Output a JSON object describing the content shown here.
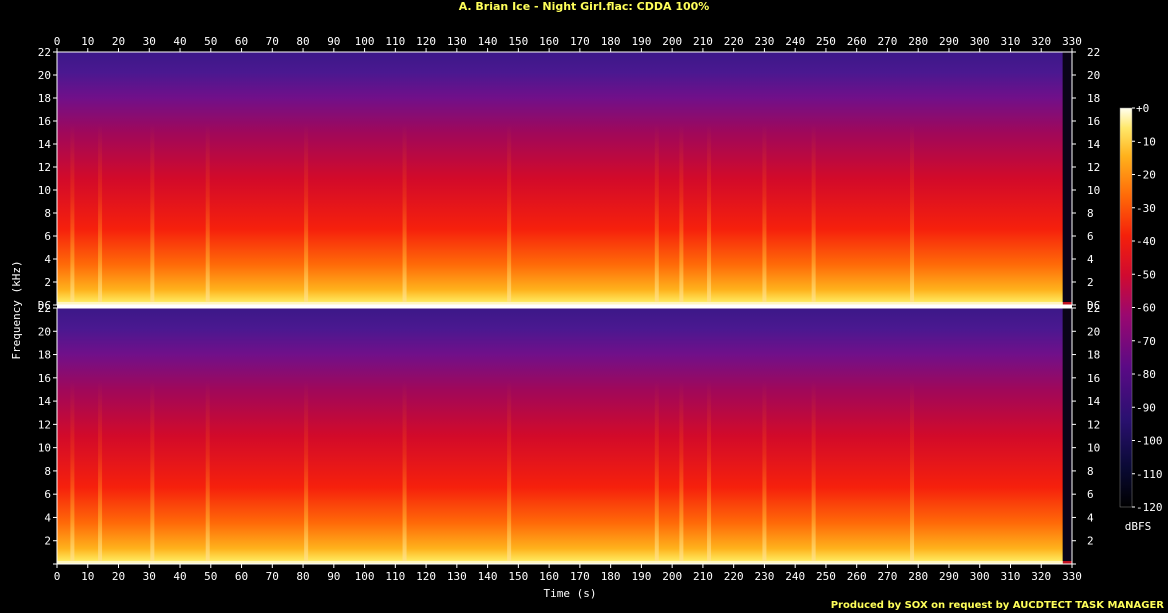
{
  "title": "A. Brian Ice - Night Girl.flac: CDDA 100%",
  "footer": "Produced by SOX on request by AUCDTECT TASK MANAGER",
  "colors": {
    "background": "#000000",
    "title": "#ffff5a",
    "axis": "#ffffff"
  },
  "chart_data": {
    "type": "heatmap",
    "xlabel": "Time (s)",
    "ylabel": "Frequency (kHz)",
    "colorbar_label": "dBFS",
    "x_ticks": [
      0,
      10,
      20,
      30,
      40,
      50,
      60,
      70,
      80,
      90,
      100,
      110,
      120,
      130,
      140,
      150,
      160,
      170,
      180,
      190,
      200,
      210,
      220,
      230,
      240,
      250,
      260,
      270,
      280,
      290,
      300,
      310,
      320,
      330
    ],
    "xlim": [
      0,
      330
    ],
    "channels": [
      {
        "y_ticks": [
          "DC",
          "2",
          "4",
          "6",
          "8",
          "10",
          "12",
          "14",
          "16",
          "18",
          "20",
          "22"
        ],
        "ylim": [
          0,
          22
        ]
      },
      {
        "y_ticks": [
          "",
          "2",
          "4",
          "6",
          "8",
          "10",
          "12",
          "14",
          "16",
          "18",
          "20",
          "22"
        ],
        "ylim": [
          0,
          22
        ]
      }
    ],
    "colorbar_ticks": [
      "+0",
      "-10",
      "-20",
      "-30",
      "-40",
      "-50",
      "-60",
      "-70",
      "-80",
      "-90",
      "-100",
      "-110",
      "-120"
    ],
    "colorbar_range": [
      -120,
      0
    ],
    "audio_end_s": 327,
    "burst_times_s": [
      5,
      14,
      31,
      49,
      81,
      113,
      147,
      195,
      203,
      212,
      230,
      246,
      278
    ]
  }
}
